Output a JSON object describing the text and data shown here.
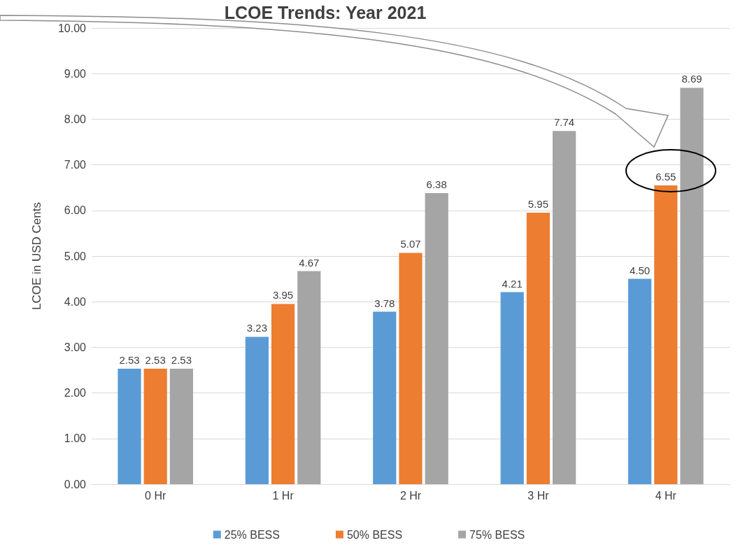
{
  "chart_data": {
    "type": "bar",
    "title": "LCOE Trends: Year 2021",
    "ylabel": "LCOE in USD Cents",
    "categories": [
      "0 Hr",
      "1 Hr",
      "2 Hr",
      "3 Hr",
      "4 Hr"
    ],
    "series": [
      {
        "name": "25% BESS",
        "color": "#5b9bd5",
        "values": [
          2.53,
          3.23,
          3.78,
          4.21,
          4.5
        ],
        "value_labels": [
          "2.53",
          "3.23",
          "3.78",
          "4.21",
          "4.50"
        ]
      },
      {
        "name": "50% BESS",
        "color": "#ed7d31",
        "values": [
          2.53,
          3.95,
          5.07,
          5.95,
          6.55
        ],
        "value_labels": [
          "2.53",
          "3.95",
          "5.07",
          "5.95",
          "6.55"
        ]
      },
      {
        "name": "75% BESS",
        "color": "#a5a5a5",
        "values": [
          2.53,
          4.67,
          6.38,
          7.74,
          8.69
        ],
        "value_labels": [
          "2.53",
          "4.67",
          "6.38",
          "7.74",
          "8.69"
        ]
      }
    ],
    "ylim": [
      0,
      10
    ],
    "yticks": [
      {
        "value": 0,
        "label": "0.00"
      },
      {
        "value": 1,
        "label": "1.00"
      },
      {
        "value": 2,
        "label": "2.00"
      },
      {
        "value": 3,
        "label": "3.00"
      },
      {
        "value": 4,
        "label": "4.00"
      },
      {
        "value": 5,
        "label": "5.00"
      },
      {
        "value": 6,
        "label": "6.00"
      },
      {
        "value": 7,
        "label": "7.00"
      },
      {
        "value": 8,
        "label": "8.00"
      },
      {
        "value": 9,
        "label": "9.00"
      },
      {
        "value": 10,
        "label": "10.00"
      }
    ],
    "grid": "y",
    "legend": "bottom"
  }
}
